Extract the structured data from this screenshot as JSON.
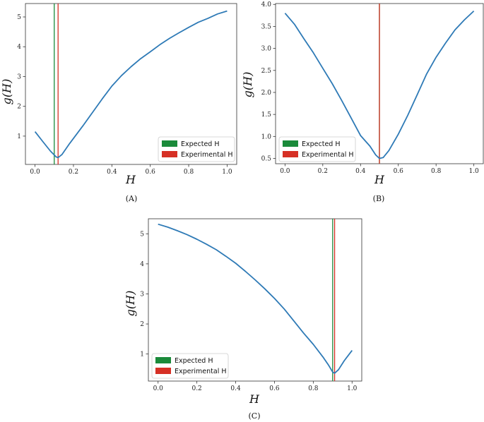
{
  "colors": {
    "curve": "#2e7ab6",
    "expected": "#1a8a3a",
    "experimental": "#d63025"
  },
  "chart_data": [
    {
      "id": "A",
      "type": "line",
      "caption": "(A)",
      "xlabel": "H",
      "ylabel": "g(H)",
      "xlim": [
        -0.05,
        1.05
      ],
      "ylim": [
        0.05,
        5.45
      ],
      "xticks": [
        0.0,
        0.2,
        0.4,
        0.6,
        0.8,
        1.0
      ],
      "xtick_labels": [
        "0.0",
        "0.2",
        "0.4",
        "0.6",
        "0.8",
        "1.0"
      ],
      "yticks": [
        1,
        2,
        3,
        4,
        5
      ],
      "ytick_labels": [
        "1",
        "2",
        "3",
        "4",
        "5"
      ],
      "series": [
        {
          "x": [
            0.0,
            0.04,
            0.08,
            0.11,
            0.12,
            0.14,
            0.18,
            0.25,
            0.3,
            0.35,
            0.4,
            0.45,
            0.5,
            0.55,
            0.6,
            0.65,
            0.7,
            0.75,
            0.8,
            0.85,
            0.9,
            0.95,
            1.0
          ],
          "y": [
            1.15,
            0.82,
            0.5,
            0.3,
            0.28,
            0.38,
            0.75,
            1.35,
            1.8,
            2.25,
            2.68,
            3.03,
            3.33,
            3.6,
            3.83,
            4.07,
            4.28,
            4.47,
            4.65,
            4.82,
            4.95,
            5.1,
            5.2
          ]
        }
      ],
      "vlines": {
        "expected": 0.1,
        "experimental": 0.12
      },
      "legend": {
        "position": "lower-right",
        "entries": [
          "Expected H",
          "Experimental H"
        ]
      }
    },
    {
      "id": "B",
      "type": "line",
      "caption": "(B)",
      "xlabel": "H",
      "ylabel": "g(H)",
      "xlim": [
        -0.05,
        1.05
      ],
      "ylim": [
        0.38,
        4.02
      ],
      "xticks": [
        0.0,
        0.2,
        0.4,
        0.6,
        0.8,
        1.0
      ],
      "xtick_labels": [
        "0.0",
        "0.2",
        "0.4",
        "0.6",
        "0.8",
        "1.0"
      ],
      "yticks": [
        0.5,
        1.0,
        1.5,
        2.0,
        2.5,
        3.0,
        3.5,
        4.0
      ],
      "ytick_labels": [
        "0.5",
        "1.0",
        "1.5",
        "2.0",
        "2.5",
        "3.0",
        "3.5",
        "4.0"
      ],
      "series": [
        {
          "x": [
            0.0,
            0.05,
            0.1,
            0.15,
            0.2,
            0.25,
            0.3,
            0.35,
            0.4,
            0.45,
            0.48,
            0.5,
            0.52,
            0.55,
            0.6,
            0.65,
            0.7,
            0.75,
            0.8,
            0.85,
            0.9,
            0.95,
            1.0
          ],
          "y": [
            3.8,
            3.55,
            3.22,
            2.9,
            2.55,
            2.2,
            1.82,
            1.42,
            1.02,
            0.78,
            0.58,
            0.5,
            0.52,
            0.68,
            1.05,
            1.48,
            1.95,
            2.42,
            2.8,
            3.12,
            3.42,
            3.65,
            3.85
          ]
        }
      ],
      "vlines": {
        "expected": 0.5,
        "experimental": 0.5
      },
      "legend": {
        "position": "lower-left",
        "entries": [
          "Expected H",
          "Experimental H"
        ]
      }
    },
    {
      "id": "C",
      "type": "line",
      "caption": "(C)",
      "xlabel": "H",
      "ylabel": "g(H)",
      "xlim": [
        -0.05,
        1.05
      ],
      "ylim": [
        0.1,
        5.5
      ],
      "xticks": [
        0.0,
        0.2,
        0.4,
        0.6,
        0.8,
        1.0
      ],
      "xtick_labels": [
        "0.0",
        "0.2",
        "0.4",
        "0.6",
        "0.8",
        "1.0"
      ],
      "yticks": [
        1,
        2,
        3,
        4,
        5
      ],
      "ytick_labels": [
        "1",
        "2",
        "3",
        "4",
        "5"
      ],
      "series": [
        {
          "x": [
            0.0,
            0.05,
            0.1,
            0.15,
            0.2,
            0.25,
            0.3,
            0.35,
            0.4,
            0.45,
            0.5,
            0.55,
            0.6,
            0.65,
            0.7,
            0.75,
            0.8,
            0.85,
            0.88,
            0.9,
            0.91,
            0.93,
            0.96,
            1.0
          ],
          "y": [
            5.32,
            5.22,
            5.1,
            4.97,
            4.82,
            4.65,
            4.47,
            4.25,
            4.02,
            3.75,
            3.47,
            3.17,
            2.85,
            2.5,
            2.1,
            1.7,
            1.32,
            0.9,
            0.62,
            0.4,
            0.36,
            0.48,
            0.78,
            1.12
          ]
        }
      ],
      "vlines": {
        "expected": 0.9,
        "experimental": 0.91
      },
      "legend": {
        "position": "lower-left",
        "entries": [
          "Expected H",
          "Experimental H"
        ]
      }
    }
  ]
}
